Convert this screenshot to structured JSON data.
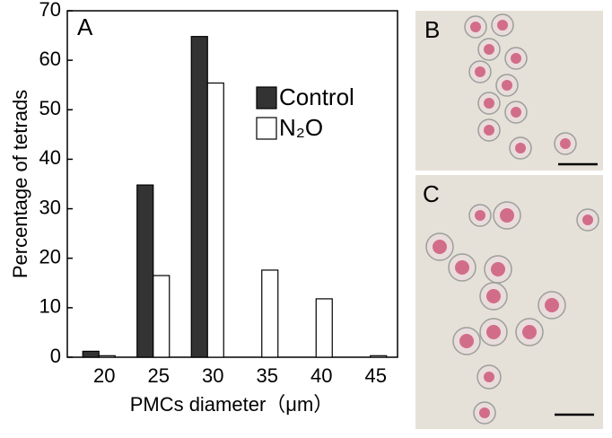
{
  "chart_data": {
    "type": "bar",
    "panel_label": "A",
    "xlabel": "PMCs diameter（μm）",
    "ylabel": "Percentage of tetrads",
    "categories": [
      "20",
      "25",
      "30",
      "35",
      "40",
      "45"
    ],
    "series": [
      {
        "name": "Control",
        "color": "#333333",
        "values": [
          1.2,
          34.8,
          64.8,
          0,
          0,
          0
        ]
      },
      {
        "name": "N₂O",
        "color": "#ffffff",
        "values": [
          0.3,
          16.5,
          55.4,
          17.6,
          11.8,
          0.3
        ]
      }
    ],
    "ylim": [
      0,
      70
    ],
    "yticks": [
      0,
      10,
      20,
      30,
      40,
      50,
      60,
      70
    ],
    "legend": "center right"
  },
  "images": [
    {
      "label": "B"
    },
    {
      "label": "C"
    }
  ]
}
